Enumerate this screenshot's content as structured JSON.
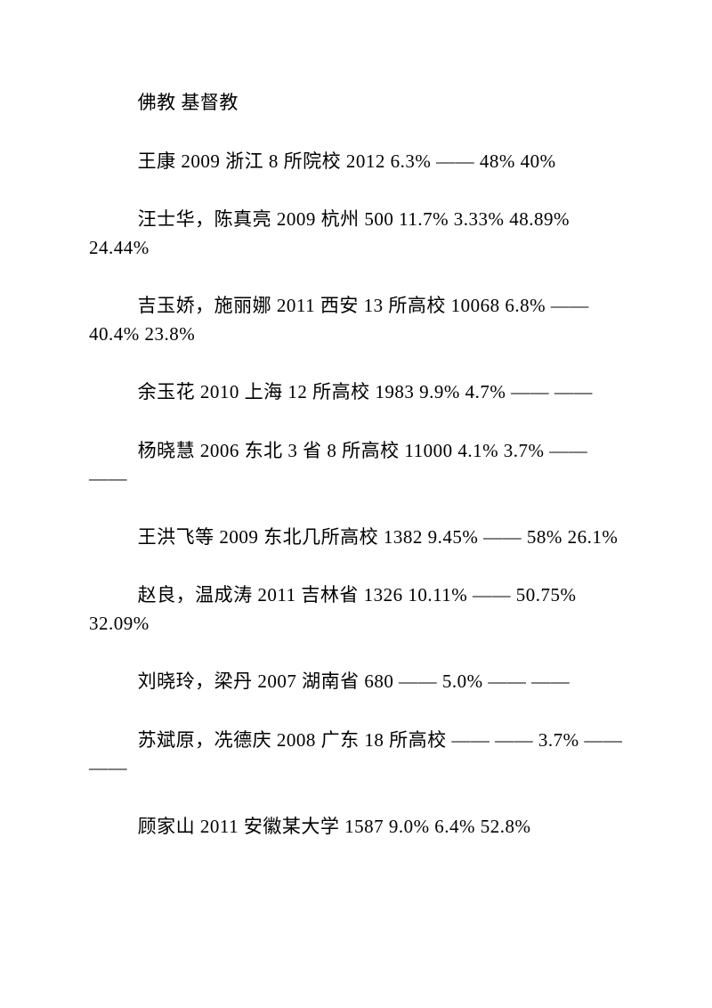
{
  "paragraphs": [
    "佛教 基督教",
    "王康 2009 浙江 8 所院校 2012 6.3% —— 48% 40%",
    "汪士华，陈真亮 2009 杭州 500 11.7% 3.33% 48.89% 24.44%",
    "吉玉娇，施丽娜 2011 西安 13 所高校 10068 6.8% —— 40.4% 23.8%",
    "余玉花 2010 上海 12 所高校 1983 9.9% 4.7% —— ——",
    "杨晓慧 2006 东北 3 省 8 所高校 11000 4.1% 3.7% —— ——",
    "王洪飞等 2009 东北几所高校 1382 9.45% —— 58% 26.1%",
    "赵良，温成涛 2011 吉林省 1326 10.11% —— 50.75% 32.09%",
    "刘晓玲，梁丹 2007 湖南省 680 —— 5.0% —— ——",
    "苏斌原，冼德庆 2008 广东 18 所高校 —— —— 3.7% —— ——",
    "顾家山 2011 安徽某大学 1587 9.0% 6.4% 52.8%"
  ]
}
